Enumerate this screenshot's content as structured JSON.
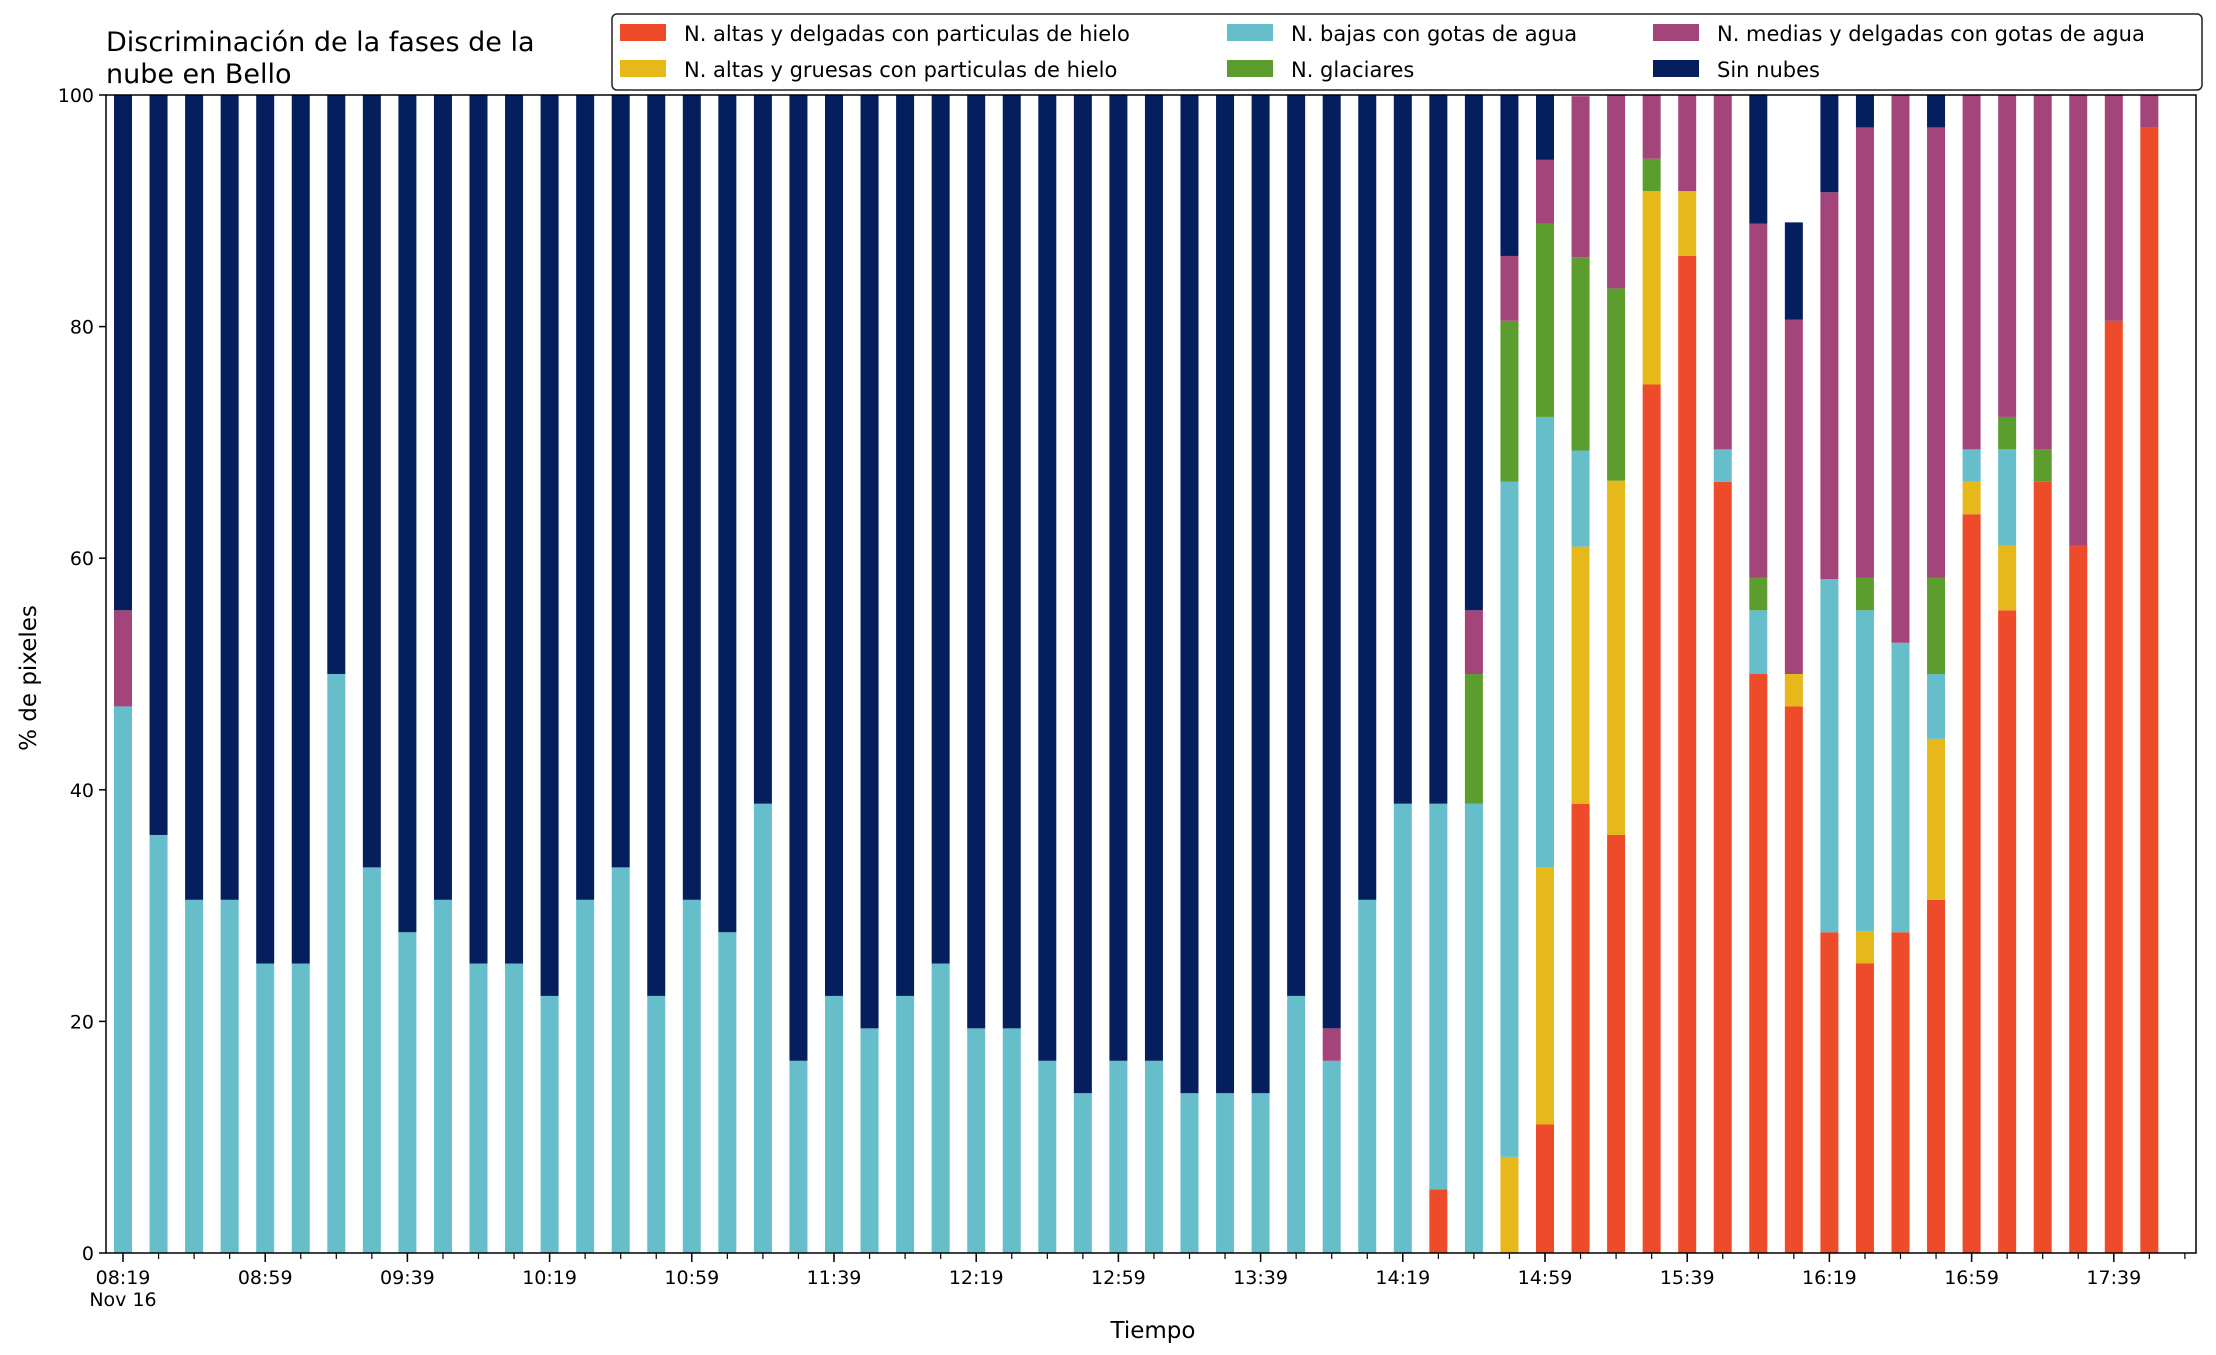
{
  "chart_data": {
    "type": "bar",
    "stacked": true,
    "title_lines": [
      "Discriminación de la fases de la",
      "nube en Bello"
    ],
    "xlabel": "Tiempo",
    "ylabel": "% de pixeles",
    "ylim": [
      0,
      100
    ],
    "yticks": [
      0,
      20,
      40,
      60,
      80,
      100
    ],
    "grid": false,
    "legend_position": "top-right",
    "x": [
      "08:19",
      "08:29",
      "08:39",
      "08:49",
      "08:59",
      "09:09",
      "09:19",
      "09:29",
      "09:39",
      "09:49",
      "09:59",
      "10:09",
      "10:19",
      "10:29",
      "10:39",
      "10:49",
      "10:59",
      "11:09",
      "11:19",
      "11:29",
      "11:39",
      "11:49",
      "11:59",
      "12:09",
      "12:19",
      "12:29",
      "12:39",
      "12:49",
      "12:59",
      "13:09",
      "13:19",
      "13:29",
      "13:39",
      "13:49",
      "13:59",
      "14:09",
      "14:19",
      "14:29",
      "14:39",
      "14:49",
      "14:59",
      "15:09",
      "15:19",
      "15:29",
      "15:39",
      "15:49",
      "15:59",
      "16:09",
      "16:19",
      "16:29",
      "16:39",
      "16:49",
      "16:59",
      "17:09",
      "17:19",
      "17:29",
      "17:39",
      "17:49"
    ],
    "x_tick_labels": [
      {
        "x": "08:19",
        "lines": [
          "08:19",
          "Nov 16"
        ]
      },
      {
        "x": "08:59",
        "lines": [
          "08:59"
        ]
      },
      {
        "x": "09:39",
        "lines": [
          "09:39"
        ]
      },
      {
        "x": "10:19",
        "lines": [
          "10:19"
        ]
      },
      {
        "x": "10:59",
        "lines": [
          "10:59"
        ]
      },
      {
        "x": "11:39",
        "lines": [
          "11:39"
        ]
      },
      {
        "x": "12:19",
        "lines": [
          "12:19"
        ]
      },
      {
        "x": "12:59",
        "lines": [
          "12:59"
        ]
      },
      {
        "x": "13:39",
        "lines": [
          "13:39"
        ]
      },
      {
        "x": "14:19",
        "lines": [
          "14:19"
        ]
      },
      {
        "x": "14:59",
        "lines": [
          "14:59"
        ]
      },
      {
        "x": "15:39",
        "lines": [
          "15:39"
        ]
      },
      {
        "x": "16:19",
        "lines": [
          "16:19"
        ]
      },
      {
        "x": "16:59",
        "lines": [
          "16:59"
        ]
      },
      {
        "x": "17:39",
        "lines": [
          "17:39"
        ]
      }
    ],
    "series": [
      {
        "name": "N. altas y delgadas con particulas de hielo",
        "color": "#ee4b2b",
        "values": [
          0,
          0,
          0,
          0,
          0,
          0,
          0,
          0,
          0,
          0,
          0,
          0,
          0,
          0,
          0,
          0,
          0,
          0,
          0,
          0,
          0,
          0,
          0,
          0,
          0,
          0,
          0,
          0,
          0,
          0,
          0,
          0,
          0,
          0,
          0,
          0,
          0,
          5.5,
          0,
          0,
          11.1,
          38.8,
          36.1,
          75,
          86.1,
          66.6,
          50,
          47.2,
          27.7,
          25,
          27.7,
          30.5,
          63.8,
          55.5,
          66.6,
          61.1,
          80.5,
          97.2
        ]
      },
      {
        "name": "N. altas y gruesas con particulas de hielo",
        "color": "#e6b81a",
        "values": [
          0,
          0,
          0,
          0,
          0,
          0,
          0,
          0,
          0,
          0,
          0,
          0,
          0,
          0,
          0,
          0,
          0,
          0,
          0,
          0,
          0,
          0,
          0,
          0,
          0,
          0,
          0,
          0,
          0,
          0,
          0,
          0,
          0,
          0,
          0,
          0,
          0,
          0,
          0,
          8.3,
          22.2,
          22.2,
          30.6,
          16.7,
          5.6,
          0,
          0,
          2.8,
          0,
          2.8,
          0,
          13.9,
          2.8,
          5.6,
          0,
          0,
          0,
          0
        ]
      },
      {
        "name": "N. bajas con gotas de agua",
        "color": "#65bec9",
        "values": [
          47.2,
          36.1,
          30.5,
          30.5,
          25,
          25,
          50,
          33.3,
          27.7,
          30.5,
          25,
          25,
          22.2,
          30.5,
          33.3,
          22.2,
          30.5,
          27.7,
          38.8,
          16.6,
          22.2,
          19.4,
          22.2,
          25,
          19.4,
          19.4,
          16.6,
          13.8,
          16.6,
          16.6,
          13.8,
          13.8,
          13.8,
          22.2,
          16.6,
          30.5,
          38.8,
          33.3,
          38.8,
          58.3,
          38.9,
          8.3,
          0,
          0,
          0,
          2.8,
          5.5,
          0,
          30.5,
          27.7,
          25,
          5.6,
          2.8,
          8.3,
          0,
          0,
          0,
          0
        ]
      },
      {
        "name": "N. glaciares",
        "color": "#5b9e2e",
        "values": [
          0,
          0,
          0,
          0,
          0,
          0,
          0,
          0,
          0,
          0,
          0,
          0,
          0,
          0,
          0,
          0,
          0,
          0,
          0,
          0,
          0,
          0,
          0,
          0,
          0,
          0,
          0,
          0,
          0,
          0,
          0,
          0,
          0,
          0,
          0,
          0,
          0,
          0,
          11.2,
          13.9,
          16.7,
          16.7,
          16.6,
          2.8,
          0,
          0,
          2.8,
          0,
          0,
          2.8,
          0,
          8.3,
          0,
          2.8,
          2.8,
          0,
          0,
          0
        ]
      },
      {
        "name": "N. medias y delgadas con gotas de agua",
        "color": "#a3447b",
        "values": [
          8.3,
          0,
          0,
          0,
          0,
          0,
          0,
          0,
          0,
          0,
          0,
          0,
          0,
          0,
          0,
          0,
          0,
          0,
          0,
          0,
          0,
          0,
          0,
          0,
          0,
          0,
          0,
          0,
          0,
          0,
          0,
          0,
          0,
          0,
          2.8,
          0,
          0,
          0,
          5.5,
          5.6,
          5.5,
          13.9,
          16.7,
          5.5,
          8.3,
          30.6,
          30.6,
          30.6,
          33.4,
          38.9,
          47.3,
          38.9,
          30.6,
          27.8,
          30.6,
          38.9,
          19.5,
          2.8
        ]
      },
      {
        "name": "Sin nubes",
        "color": "#041e5e",
        "values": [
          44.5,
          63.9,
          69.5,
          69.5,
          75,
          75,
          50,
          66.7,
          72.3,
          69.5,
          75,
          75,
          77.8,
          69.5,
          66.7,
          77.8,
          69.5,
          72.3,
          61.2,
          83.4,
          77.8,
          80.6,
          77.8,
          75,
          80.6,
          80.6,
          83.4,
          86.2,
          83.4,
          83.4,
          86.2,
          86.2,
          86.2,
          77.8,
          80.6,
          69.5,
          61.2,
          61.2,
          44.5,
          13.9,
          5.6,
          0,
          0,
          0,
          0,
          0,
          11.1,
          8.4,
          8.4,
          2.8,
          0,
          2.8,
          0,
          0,
          0,
          0,
          0,
          0
        ]
      }
    ]
  }
}
